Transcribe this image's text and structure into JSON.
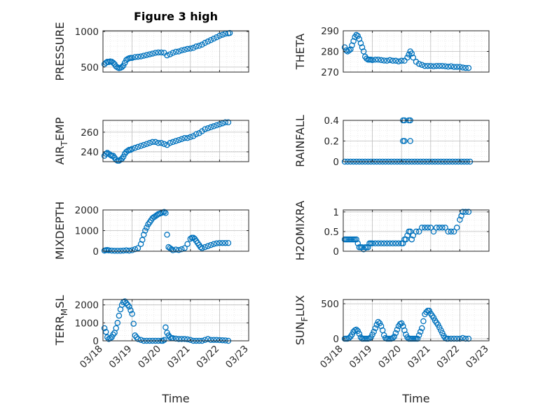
{
  "figure": {
    "title": "Figure 3 high",
    "marker_color": "#0072BD",
    "axis_color": "#262626",
    "grid_color": "#bdbdbd"
  },
  "chart_data": [
    {
      "type": "scatter",
      "id": "pressure",
      "ylabel": "PRESSURE",
      "ylabel_sub": "",
      "ylabel_tail": "",
      "xlim": [
        0,
        5
      ],
      "ylim": [
        430,
        1010
      ],
      "yticks": [
        500,
        1000
      ],
      "ytick_labels": [
        "500",
        "1000"
      ],
      "xticks": [
        0,
        1,
        2,
        3,
        4,
        5
      ],
      "xtick_labels": [
        "03/18",
        "03/19",
        "03/20",
        "03/21",
        "03/22",
        "03/23"
      ],
      "show_xtick_labels": false,
      "xlabel": "",
      "grid": true,
      "x": [
        0.05,
        0.1,
        0.15,
        0.2,
        0.25,
        0.3,
        0.35,
        0.4,
        0.45,
        0.5,
        0.55,
        0.6,
        0.65,
        0.7,
        0.75,
        0.8,
        0.85,
        0.9,
        0.95,
        1.0,
        1.1,
        1.2,
        1.3,
        1.4,
        1.5,
        1.6,
        1.7,
        1.8,
        1.9,
        2.0,
        2.1,
        2.2,
        2.3,
        2.4,
        2.5,
        2.6,
        2.7,
        2.8,
        2.9,
        3.0,
        3.1,
        3.2,
        3.3,
        3.4,
        3.5,
        3.6,
        3.7,
        3.8,
        3.9,
        4.0,
        4.1,
        4.2,
        4.3,
        4.35
      ],
      "y": [
        540,
        560,
        575,
        570,
        580,
        575,
        560,
        540,
        510,
        495,
        485,
        490,
        500,
        520,
        560,
        600,
        615,
        625,
        630,
        630,
        640,
        645,
        650,
        660,
        670,
        680,
        690,
        700,
        705,
        705,
        700,
        665,
        680,
        700,
        715,
        720,
        735,
        745,
        755,
        760,
        770,
        790,
        800,
        815,
        840,
        860,
        880,
        900,
        920,
        940,
        955,
        970,
        975,
        980
      ]
    },
    {
      "type": "scatter",
      "id": "theta",
      "ylabel": "THETA",
      "ylabel_sub": "",
      "ylabel_tail": "",
      "xlim": [
        0,
        5
      ],
      "ylim": [
        270,
        290
      ],
      "yticks": [
        270,
        280,
        290
      ],
      "ytick_labels": [
        "270",
        "280",
        "290"
      ],
      "xticks": [
        0,
        1,
        2,
        3,
        4,
        5
      ],
      "xtick_labels": [
        "03/18",
        "03/19",
        "03/20",
        "03/21",
        "03/22",
        "03/23"
      ],
      "show_xtick_labels": false,
      "xlabel": "",
      "grid": true,
      "x": [
        0.05,
        0.1,
        0.15,
        0.2,
        0.25,
        0.3,
        0.35,
        0.4,
        0.45,
        0.5,
        0.55,
        0.6,
        0.65,
        0.7,
        0.75,
        0.8,
        0.85,
        0.9,
        0.95,
        1.0,
        1.1,
        1.2,
        1.3,
        1.4,
        1.5,
        1.6,
        1.7,
        1.8,
        1.9,
        2.0,
        2.1,
        2.2,
        2.25,
        2.3,
        2.35,
        2.4,
        2.5,
        2.6,
        2.7,
        2.8,
        2.9,
        3.0,
        3.1,
        3.2,
        3.3,
        3.4,
        3.5,
        3.6,
        3.7,
        3.8,
        3.9,
        4.0,
        4.1,
        4.2,
        4.3
      ],
      "y": [
        282,
        280.5,
        280,
        280.5,
        281,
        283,
        285,
        287,
        288,
        287.5,
        286,
        284,
        282,
        280,
        277.5,
        276.5,
        276,
        276,
        276,
        275.8,
        276,
        276,
        275.8,
        275.6,
        275.5,
        275.8,
        275.5,
        275.5,
        275.2,
        275.5,
        275.5,
        277,
        278.5,
        280,
        279,
        277,
        275,
        274,
        273.5,
        273,
        273,
        273,
        272.8,
        273,
        273,
        273,
        272.8,
        272.6,
        272.8,
        272.5,
        272.5,
        272.5,
        272.2,
        272,
        272
      ]
    },
    {
      "type": "scatter",
      "id": "air_temp",
      "ylabel": "AIR",
      "ylabel_sub": "T",
      "ylabel_tail": "EMP",
      "xlim": [
        0,
        5
      ],
      "ylim": [
        230,
        272
      ],
      "yticks": [
        240,
        260
      ],
      "ytick_labels": [
        "240",
        "260"
      ],
      "xticks": [
        0,
        1,
        2,
        3,
        4,
        5
      ],
      "xtick_labels": [
        "03/18",
        "03/19",
        "03/20",
        "03/21",
        "03/22",
        "03/23"
      ],
      "show_xtick_labels": false,
      "xlabel": "",
      "grid": true,
      "x": [
        0.05,
        0.1,
        0.15,
        0.2,
        0.25,
        0.3,
        0.35,
        0.4,
        0.45,
        0.5,
        0.55,
        0.6,
        0.65,
        0.7,
        0.75,
        0.8,
        0.85,
        0.9,
        0.95,
        1.0,
        1.1,
        1.2,
        1.3,
        1.4,
        1.5,
        1.6,
        1.7,
        1.8,
        1.9,
        2.0,
        2.1,
        2.2,
        2.3,
        2.4,
        2.5,
        2.6,
        2.7,
        2.8,
        2.9,
        3.0,
        3.1,
        3.2,
        3.3,
        3.4,
        3.5,
        3.6,
        3.7,
        3.8,
        3.9,
        4.0,
        4.1,
        4.2,
        4.3
      ],
      "y": [
        236,
        238,
        239,
        238,
        237,
        236,
        236,
        234,
        232,
        231,
        231,
        232,
        233,
        235,
        238,
        240,
        241,
        242,
        242,
        243,
        244,
        245,
        246,
        247,
        248,
        249,
        250,
        250,
        249,
        249,
        248,
        247,
        249,
        250,
        251,
        252,
        253,
        254,
        254,
        255,
        256,
        258,
        259,
        261,
        263,
        264,
        265,
        266,
        267,
        268,
        269,
        270,
        270
      ]
    },
    {
      "type": "scatter",
      "id": "rainfall",
      "ylabel": "RAINFALL",
      "ylabel_sub": "",
      "ylabel_tail": "",
      "xlim": [
        0,
        5
      ],
      "ylim": [
        0,
        0.4
      ],
      "yticks": [
        0,
        0.2,
        0.4
      ],
      "ytick_labels": [
        "0",
        "0.2",
        "0.4"
      ],
      "xticks": [
        0,
        1,
        2,
        3,
        4,
        5
      ],
      "xtick_labels": [
        "03/18",
        "03/19",
        "03/20",
        "03/21",
        "03/22",
        "03/23"
      ],
      "show_xtick_labels": false,
      "xlabel": "",
      "grid": true,
      "x": [
        0.05,
        0.15,
        0.25,
        0.35,
        0.45,
        0.55,
        0.65,
        0.75,
        0.85,
        0.95,
        1.05,
        1.15,
        1.25,
        1.35,
        1.45,
        1.55,
        1.65,
        1.75,
        1.85,
        1.95,
        2.05,
        2.15,
        2.25,
        2.35,
        2.45,
        2.55,
        2.65,
        2.75,
        2.85,
        2.95,
        3.05,
        3.15,
        3.25,
        3.35,
        3.45,
        3.55,
        3.65,
        3.75,
        3.85,
        3.95,
        4.05,
        4.15,
        4.25,
        4.35,
        2.05,
        2.1,
        2.05,
        2.1,
        2.25,
        2.3,
        2.3
      ],
      "y": [
        0,
        0,
        0,
        0,
        0,
        0,
        0,
        0,
        0,
        0,
        0,
        0,
        0,
        0,
        0,
        0,
        0,
        0,
        0,
        0,
        0,
        0,
        0,
        0,
        0,
        0,
        0,
        0,
        0,
        0,
        0,
        0,
        0,
        0,
        0,
        0,
        0,
        0,
        0,
        0,
        0,
        0,
        0,
        0,
        0.2,
        0.2,
        0.4,
        0.4,
        0.4,
        0.4,
        0.2
      ]
    },
    {
      "type": "scatter",
      "id": "mixdepth",
      "ylabel": "MIXDEPTH",
      "ylabel_sub": "",
      "ylabel_tail": "",
      "xlim": [
        0,
        5
      ],
      "ylim": [
        0,
        2000
      ],
      "yticks": [
        0,
        1000,
        2000
      ],
      "ytick_labels": [
        "0",
        "1000",
        "2000"
      ],
      "xticks": [
        0,
        1,
        2,
        3,
        4,
        5
      ],
      "xtick_labels": [
        "03/18",
        "03/19",
        "03/20",
        "03/21",
        "03/22",
        "03/23"
      ],
      "show_xtick_labels": false,
      "xlabel": "",
      "grid": true,
      "x": [
        0.05,
        0.1,
        0.15,
        0.2,
        0.3,
        0.4,
        0.5,
        0.6,
        0.7,
        0.8,
        0.9,
        1.0,
        1.1,
        1.2,
        1.3,
        1.35,
        1.4,
        1.45,
        1.5,
        1.55,
        1.6,
        1.65,
        1.7,
        1.75,
        1.8,
        1.85,
        1.9,
        1.95,
        2.0,
        2.05,
        2.1,
        2.15,
        2.2,
        2.25,
        2.3,
        2.35,
        2.4,
        2.5,
        2.6,
        2.7,
        2.8,
        2.9,
        3.0,
        3.05,
        3.1,
        3.15,
        3.2,
        3.25,
        3.3,
        3.35,
        3.4,
        3.5,
        3.6,
        3.7,
        3.8,
        3.9,
        4.0,
        4.1,
        4.2,
        4.3
      ],
      "y": [
        30,
        50,
        60,
        40,
        30,
        20,
        20,
        20,
        30,
        40,
        30,
        50,
        100,
        150,
        350,
        550,
        800,
        1000,
        1150,
        1300,
        1400,
        1500,
        1600,
        1650,
        1700,
        1750,
        1800,
        1820,
        1850,
        1880,
        1900,
        1850,
        800,
        200,
        150,
        100,
        50,
        80,
        60,
        100,
        150,
        350,
        600,
        650,
        650,
        600,
        500,
        400,
        300,
        200,
        150,
        200,
        250,
        300,
        350,
        380,
        400,
        400,
        400,
        400
      ]
    },
    {
      "type": "scatter",
      "id": "h2omixra",
      "ylabel": "H2OMIXRA",
      "ylabel_sub": "",
      "ylabel_tail": "",
      "xlim": [
        0,
        5
      ],
      "ylim": [
        0,
        1.05
      ],
      "yticks": [
        0,
        0.5,
        1
      ],
      "ytick_labels": [
        "0",
        "0.5",
        "1"
      ],
      "xticks": [
        0,
        1,
        2,
        3,
        4,
        5
      ],
      "xtick_labels": [
        "03/18",
        "03/19",
        "03/20",
        "03/21",
        "03/22",
        "03/23"
      ],
      "show_xtick_labels": false,
      "xlabel": "",
      "grid": true,
      "x": [
        0.05,
        0.1,
        0.15,
        0.2,
        0.25,
        0.3,
        0.35,
        0.4,
        0.45,
        0.5,
        0.55,
        0.6,
        0.65,
        0.7,
        0.75,
        0.8,
        0.85,
        0.9,
        0.95,
        1.0,
        1.1,
        1.2,
        1.3,
        1.4,
        1.5,
        1.6,
        1.7,
        1.8,
        1.9,
        2.0,
        2.05,
        2.1,
        2.15,
        2.2,
        2.25,
        2.3,
        2.35,
        2.4,
        2.5,
        2.6,
        2.7,
        2.8,
        2.9,
        3.0,
        3.1,
        3.2,
        3.3,
        3.4,
        3.5,
        3.6,
        3.7,
        3.8,
        3.9,
        4.0,
        4.05,
        4.1,
        4.2,
        4.3
      ],
      "y": [
        0.3,
        0.3,
        0.3,
        0.3,
        0.3,
        0.3,
        0.3,
        0.3,
        0.3,
        0.2,
        0.1,
        0.1,
        0.1,
        0.05,
        0.1,
        0.1,
        0.1,
        0.2,
        0.2,
        0.2,
        0.2,
        0.2,
        0.2,
        0.2,
        0.2,
        0.2,
        0.2,
        0.2,
        0.2,
        0.2,
        0.2,
        0.3,
        0.3,
        0.4,
        0.5,
        0.5,
        0.3,
        0.4,
        0.5,
        0.5,
        0.6,
        0.6,
        0.6,
        0.6,
        0.5,
        0.6,
        0.6,
        0.6,
        0.6,
        0.5,
        0.5,
        0.5,
        0.6,
        0.8,
        0.9,
        1.0,
        1.0,
        1.0
      ]
    },
    {
      "type": "scatter",
      "id": "terr_msl",
      "ylabel": "TERR",
      "ylabel_sub": "M",
      "ylabel_tail": "SL",
      "xlim": [
        0,
        5
      ],
      "ylim": [
        0,
        2300
      ],
      "yticks": [
        0,
        1000,
        2000
      ],
      "ytick_labels": [
        "0",
        "1000",
        "2000"
      ],
      "xticks": [
        0,
        1,
        2,
        3,
        4,
        5
      ],
      "xtick_labels": [
        "03/18",
        "03/19",
        "03/20",
        "03/21",
        "03/22",
        "03/23"
      ],
      "show_xtick_labels": true,
      "xlabel": "Time",
      "grid": true,
      "x": [
        0.05,
        0.1,
        0.15,
        0.2,
        0.25,
        0.3,
        0.35,
        0.4,
        0.45,
        0.5,
        0.55,
        0.6,
        0.65,
        0.7,
        0.75,
        0.8,
        0.85,
        0.9,
        0.95,
        1.0,
        1.05,
        1.1,
        1.15,
        1.2,
        1.3,
        1.4,
        1.5,
        1.6,
        1.7,
        1.8,
        1.9,
        2.0,
        2.05,
        2.1,
        2.15,
        2.2,
        2.25,
        2.3,
        2.35,
        2.4,
        2.5,
        2.6,
        2.7,
        2.8,
        2.9,
        3.0,
        3.1,
        3.2,
        3.3,
        3.4,
        3.5,
        3.6,
        3.7,
        3.8,
        3.9,
        4.0,
        4.1,
        4.2,
        4.3
      ],
      "y": [
        700,
        500,
        200,
        100,
        150,
        200,
        350,
        450,
        700,
        1000,
        1400,
        1750,
        2000,
        2150,
        2200,
        2100,
        2000,
        1900,
        1700,
        1500,
        950,
        300,
        200,
        100,
        50,
        0,
        0,
        0,
        0,
        0,
        0,
        0,
        0,
        50,
        750,
        450,
        300,
        200,
        150,
        150,
        120,
        100,
        100,
        100,
        80,
        50,
        0,
        0,
        0,
        0,
        50,
        100,
        50,
        50,
        50,
        40,
        30,
        20,
        0
      ]
    },
    {
      "type": "scatter",
      "id": "sun_flux",
      "ylabel": "SUN",
      "ylabel_sub": "F",
      "ylabel_tail": "LUX",
      "xlim": [
        0,
        5
      ],
      "ylim": [
        -30,
        560
      ],
      "yticks": [
        0,
        500
      ],
      "ytick_labels": [
        "0",
        "500"
      ],
      "xticks": [
        0,
        1,
        2,
        3,
        4,
        5
      ],
      "xtick_labels": [
        "03/18",
        "03/19",
        "03/20",
        "03/21",
        "03/22",
        "03/23"
      ],
      "show_xtick_labels": true,
      "xlabel": "Time",
      "grid": true,
      "x": [
        0.05,
        0.1,
        0.15,
        0.2,
        0.25,
        0.3,
        0.35,
        0.4,
        0.45,
        0.5,
        0.55,
        0.6,
        0.65,
        0.7,
        0.75,
        0.8,
        0.85,
        0.9,
        0.95,
        1.0,
        1.05,
        1.1,
        1.15,
        1.2,
        1.25,
        1.3,
        1.35,
        1.4,
        1.45,
        1.5,
        1.55,
        1.6,
        1.65,
        1.7,
        1.75,
        1.8,
        1.85,
        1.9,
        1.95,
        2.0,
        2.05,
        2.1,
        2.15,
        2.2,
        2.25,
        2.3,
        2.35,
        2.4,
        2.45,
        2.5,
        2.55,
        2.6,
        2.65,
        2.7,
        2.75,
        2.8,
        2.85,
        2.9,
        2.95,
        3.0,
        3.05,
        3.1,
        3.15,
        3.2,
        3.25,
        3.3,
        3.35,
        3.4,
        3.45,
        3.5,
        3.55,
        3.6,
        3.7,
        3.8,
        3.9,
        4.0,
        4.1,
        4.2,
        4.3
      ],
      "y": [
        0,
        0,
        0,
        10,
        30,
        60,
        100,
        120,
        130,
        110,
        70,
        20,
        0,
        0,
        0,
        0,
        0,
        5,
        20,
        60,
        100,
        150,
        200,
        240,
        220,
        180,
        120,
        50,
        10,
        0,
        0,
        0,
        0,
        10,
        30,
        80,
        130,
        180,
        210,
        220,
        180,
        120,
        60,
        20,
        0,
        0,
        0,
        0,
        0,
        0,
        0,
        50,
        100,
        150,
        250,
        350,
        380,
        400,
        400,
        360,
        330,
        300,
        260,
        230,
        200,
        160,
        120,
        80,
        40,
        10,
        0,
        0,
        0,
        0,
        0,
        0,
        10,
        0,
        0
      ]
    }
  ]
}
